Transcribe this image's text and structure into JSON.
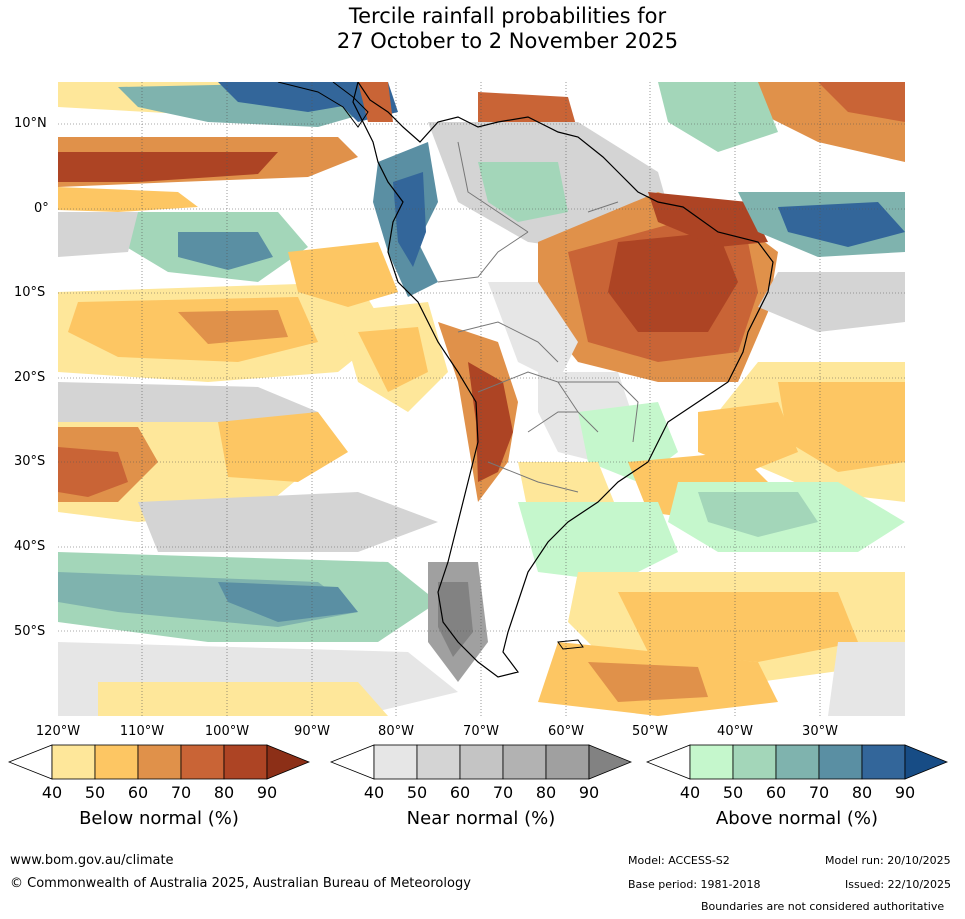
{
  "title_line1": "Tercile rainfall probabilities for",
  "title_line2": "27 October to 2 November 2025",
  "lat_labels": [
    "10°N",
    "0°",
    "10°S",
    "20°S",
    "30°S",
    "40°S",
    "50°S"
  ],
  "lon_labels": [
    "120°W",
    "110°W",
    "100°W",
    "90°W",
    "80°W",
    "70°W",
    "60°W",
    "50°W",
    "40°W",
    "30°W"
  ],
  "colorbars": [
    {
      "title": "Below normal (%)",
      "ticks": [
        "40",
        "50",
        "60",
        "70",
        "80",
        "90"
      ],
      "colors": [
        "#ffffff",
        "#fee79a",
        "#fdc663",
        "#e0914a",
        "#c96436",
        "#ad4424",
        "#8c2f17"
      ]
    },
    {
      "title": "Near normal (%)",
      "ticks": [
        "40",
        "50",
        "60",
        "70",
        "80",
        "90"
      ],
      "colors": [
        "#ffffff",
        "#e6e6e6",
        "#d4d4d4",
        "#c4c4c4",
        "#b2b2b2",
        "#a0a0a0",
        "#828282"
      ]
    },
    {
      "title": "Above normal (%)",
      "ticks": [
        "40",
        "50",
        "60",
        "70",
        "80",
        "90"
      ],
      "colors": [
        "#ffffff",
        "#c5f7cc",
        "#a3d6b9",
        "#7fb3ae",
        "#5a8fa3",
        "#33669a",
        "#174c85"
      ]
    }
  ],
  "footer": {
    "url": "www.bom.gov.au/climate",
    "copyright": "© Commonwealth of Australia 2025, Australian Bureau of Meteorology",
    "model": "Model: ACCESS-S2",
    "model_run": "Model run: 20/10/2025",
    "base_period": "Base period: 1981-2018",
    "issued": "Issued: 22/10/2025",
    "disclaimer": "Boundaries are not considered authoritative"
  }
}
